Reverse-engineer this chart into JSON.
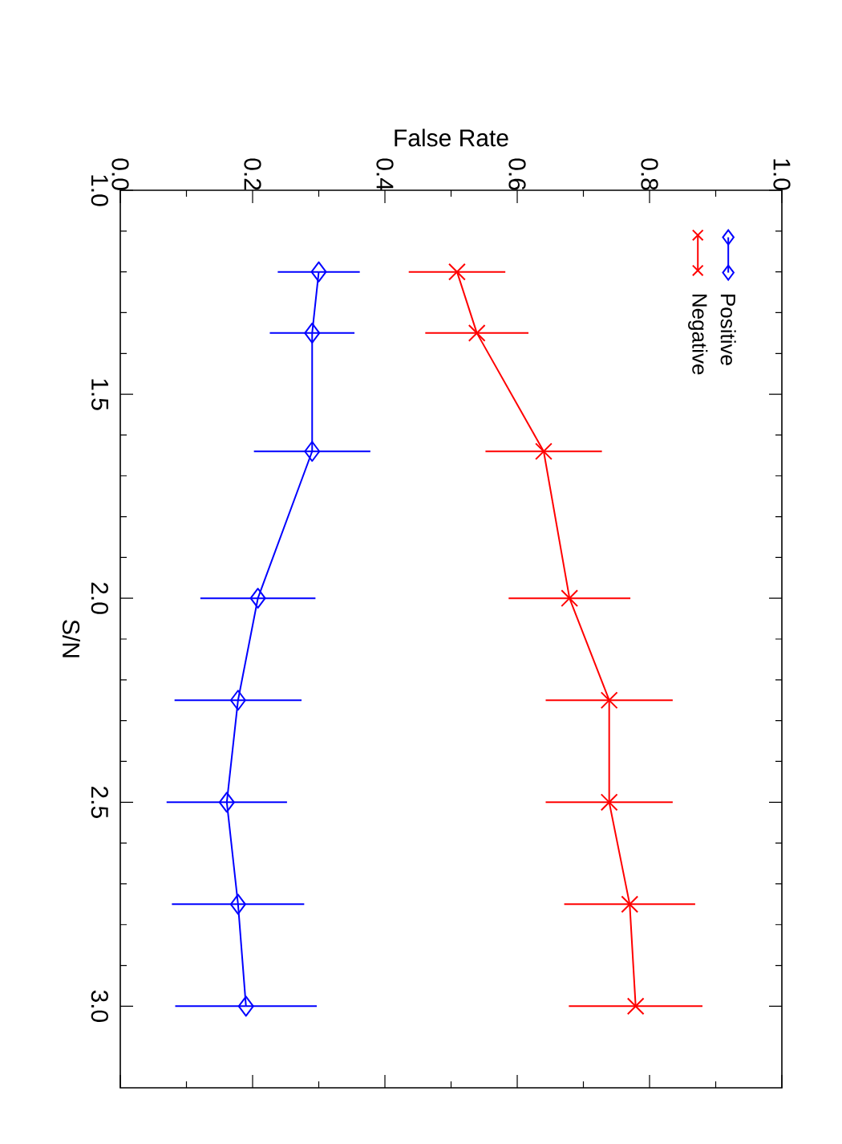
{
  "chart_data": {
    "type": "line",
    "xlabel": "False Rate",
    "ylabel": "S/N",
    "series": [
      {
        "name": "Positive",
        "color": "#0000ff",
        "marker": "diamond",
        "x": [
          0.3,
          0.29,
          0.29,
          0.208,
          0.178,
          0.161,
          0.178,
          0.19
        ],
        "values": [
          1.2,
          1.35,
          1.64,
          2.0,
          2.25,
          2.5,
          2.75,
          3.0
        ],
        "xerrors": [
          0.062,
          0.064,
          0.088,
          0.087,
          0.096,
          0.091,
          0.1,
          0.107
        ]
      },
      {
        "name": "Negative",
        "color": "#ff0000",
        "marker": "cross",
        "x": [
          0.509,
          0.539,
          0.64,
          0.679,
          0.739,
          0.739,
          0.77,
          0.779
        ],
        "values": [
          1.2,
          1.35,
          1.64,
          2.0,
          2.25,
          2.5,
          2.75,
          3.0
        ],
        "xerrors": [
          0.073,
          0.078,
          0.088,
          0.092,
          0.096,
          0.096,
          0.099,
          0.101
        ]
      }
    ],
    "xlim": [
      0.0,
      1.0
    ],
    "xticks": [
      {
        "value": 0.0,
        "label": "0.0"
      },
      {
        "value": 0.2,
        "label": "0.2"
      },
      {
        "value": 0.4,
        "label": "0.4"
      },
      {
        "value": 0.6,
        "label": "0.6"
      },
      {
        "value": 0.8,
        "label": "0.8"
      },
      {
        "value": 1.0,
        "label": "1.0"
      }
    ],
    "ylim": [
      3.2,
      1.0
    ],
    "yticks": [
      {
        "value": 1.0,
        "label": "1.0"
      },
      {
        "value": 1.5,
        "label": "1.5"
      },
      {
        "value": 2.0,
        "label": "2.0"
      },
      {
        "value": 2.5,
        "label": "2.5"
      },
      {
        "value": 3.0,
        "label": "3.0"
      }
    ],
    "grid": false,
    "legend": "top right",
    "line_style": "solid"
  }
}
